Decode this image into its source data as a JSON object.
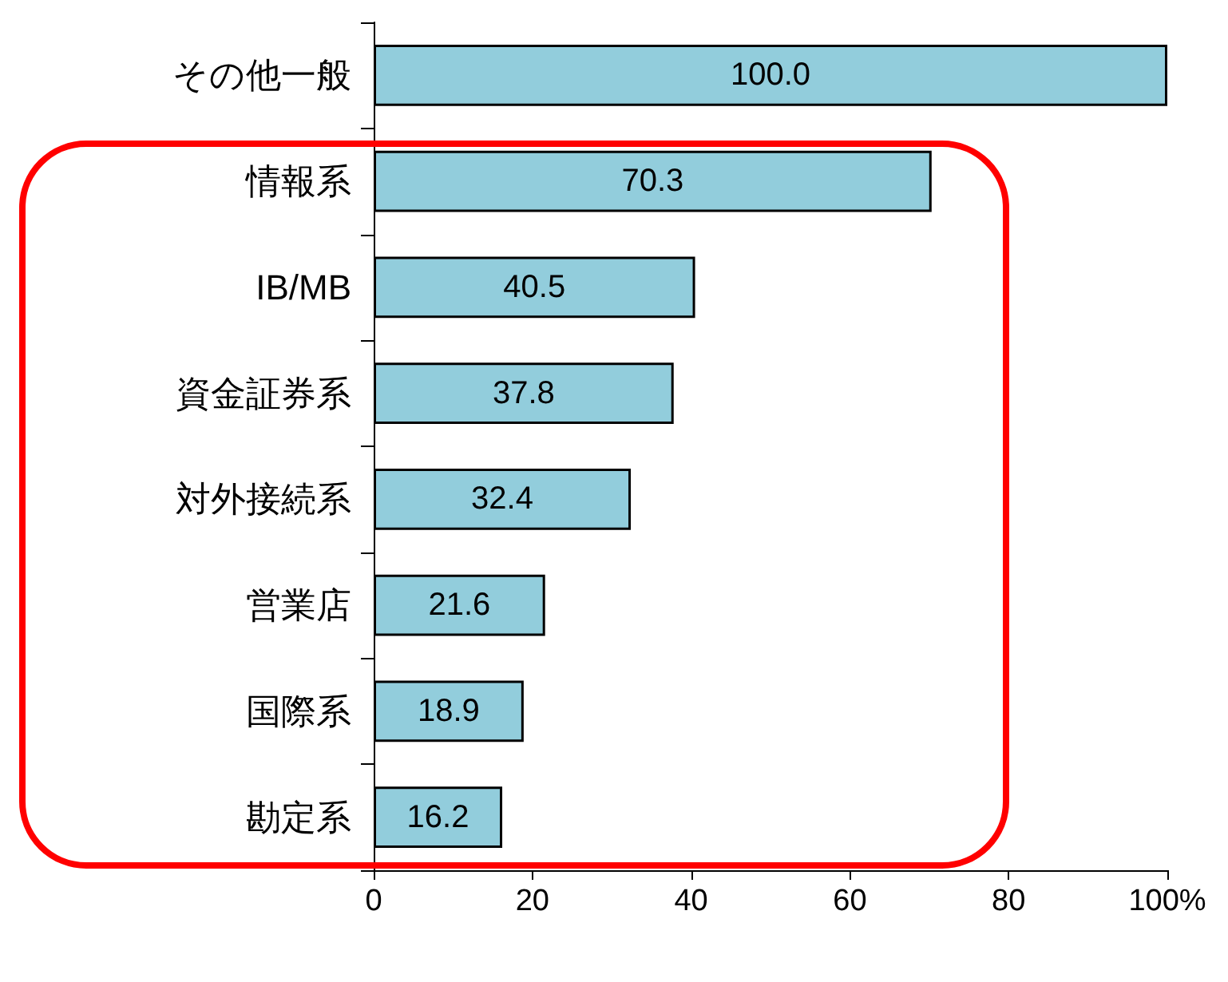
{
  "chart_data": {
    "type": "bar",
    "orientation": "horizontal",
    "categories": [
      "その他一般",
      "情報系",
      "IB/MB",
      "資金証券系",
      "対外接続系",
      "営業店",
      "国際系",
      "勘定系"
    ],
    "values": [
      100.0,
      70.3,
      40.5,
      37.8,
      32.4,
      21.6,
      18.9,
      16.2
    ],
    "value_labels": [
      "100.0",
      "70.3",
      "40.5",
      "37.8",
      "32.4",
      "21.6",
      "18.9",
      "16.2"
    ],
    "color": "#92cddc",
    "xlim": [
      0,
      100
    ],
    "xticks": [
      0,
      20,
      40,
      60,
      80,
      {
        "value": 100,
        "label": "100%"
      }
    ]
  }
}
